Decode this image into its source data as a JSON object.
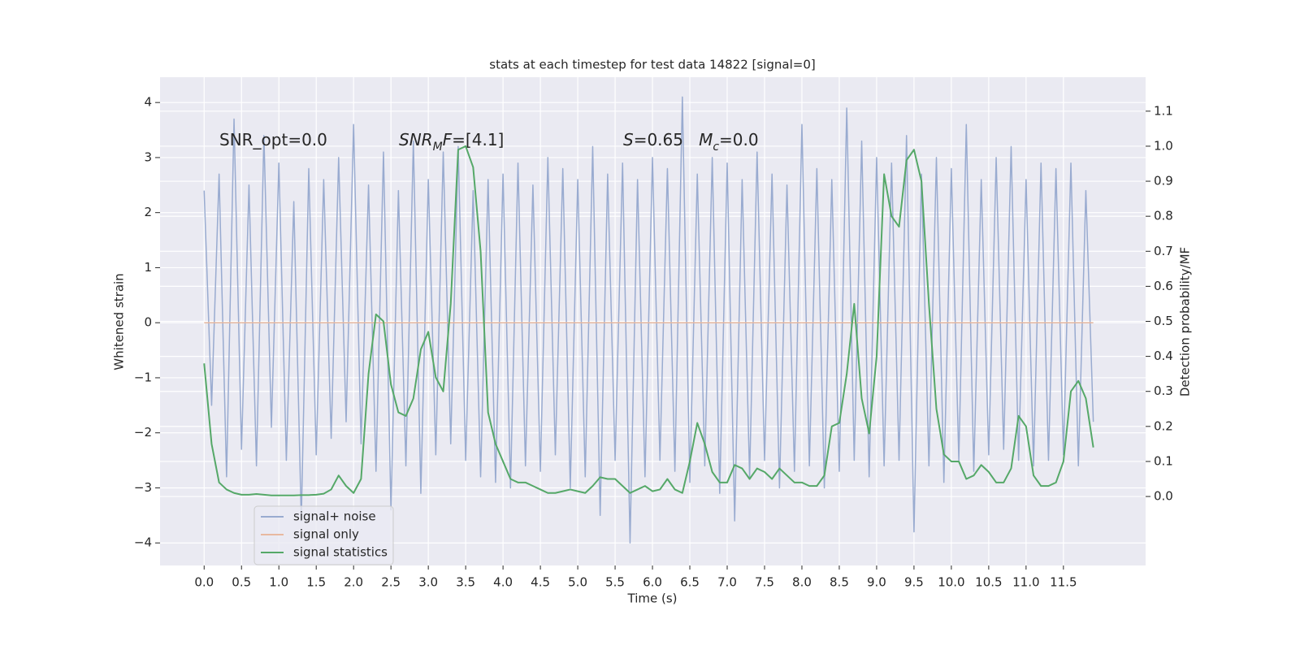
{
  "chart_data": {
    "type": "line",
    "title": "stats at each timestep for test data 14822 [signal=0]",
    "xlabel": "Time (s)",
    "ylabel": "Whitened strain",
    "y2label": "Detection probability/MF",
    "annotations": [
      [
        {
          "text": "SNR_opt=0.0"
        }
      ],
      [
        {
          "text": "SNR",
          "italic": true
        },
        {
          "text": "M",
          "italic": true,
          "sub": true
        },
        {
          "text": "F",
          "italic": true
        },
        {
          "text": "=[4.1]"
        }
      ],
      [
        {
          "text": "S",
          "italic": true
        },
        {
          "text": "=0.65   "
        },
        {
          "text": "M",
          "italic": true
        },
        {
          "text": "c",
          "italic": true,
          "sub": true
        },
        {
          "text": "=0.0"
        }
      ]
    ],
    "x": [
      0,
      0.1,
      0.2,
      0.3,
      0.4,
      0.5,
      0.6,
      0.7,
      0.8,
      0.9,
      1.0,
      1.1,
      1.2,
      1.3,
      1.4,
      1.5,
      1.6,
      1.7,
      1.8,
      1.9,
      2.0,
      2.1,
      2.2,
      2.3,
      2.4,
      2.5,
      2.6,
      2.7,
      2.8,
      2.9,
      3.0,
      3.1,
      3.2,
      3.3,
      3.4,
      3.5,
      3.6,
      3.7,
      3.8,
      3.9,
      4.0,
      4.1,
      4.2,
      4.3,
      4.4,
      4.5,
      4.6,
      4.7,
      4.8,
      4.9,
      5.0,
      5.1,
      5.2,
      5.3,
      5.4,
      5.5,
      5.6,
      5.7,
      5.8,
      5.9,
      6.0,
      6.1,
      6.2,
      6.3,
      6.4,
      6.5,
      6.6,
      6.7,
      6.8,
      6.9,
      7.0,
      7.1,
      7.2,
      7.3,
      7.4,
      7.5,
      7.6,
      7.7,
      7.8,
      7.9,
      8.0,
      8.1,
      8.2,
      8.3,
      8.4,
      8.5,
      8.6,
      8.7,
      8.8,
      8.9,
      9.0,
      9.1,
      9.2,
      9.3,
      9.4,
      9.5,
      9.6,
      9.7,
      9.8,
      9.9,
      10.0,
      10.1,
      10.2,
      10.3,
      10.4,
      10.5,
      10.6,
      10.7,
      10.8,
      10.9,
      11.0,
      11.1,
      11.2,
      11.3,
      11.4,
      11.5,
      11.6,
      11.7,
      11.8,
      11.9
    ],
    "series": [
      {
        "name": "signal+ noise",
        "color": "#99abd0",
        "axis": "y",
        "values": [
          2.4,
          -1.5,
          2.7,
          -2.8,
          3.7,
          -2.3,
          2.5,
          -2.6,
          3.4,
          -1.9,
          2.9,
          -2.5,
          2.2,
          -3.6,
          2.8,
          -2.4,
          2.6,
          -2.1,
          3.0,
          -1.8,
          3.6,
          -2.2,
          2.5,
          -2.7,
          3.1,
          -3.4,
          2.4,
          -2.6,
          3.3,
          -3.1,
          2.6,
          -2.4,
          3.1,
          -2.2,
          3.2,
          -2.5,
          2.4,
          -2.8,
          2.6,
          -2.9,
          2.7,
          -3.0,
          2.9,
          -2.6,
          2.5,
          -2.7,
          3.0,
          -2.4,
          2.8,
          -3.0,
          2.6,
          -2.8,
          3.2,
          -3.5,
          2.7,
          -2.5,
          2.9,
          -4.0,
          2.6,
          -2.8,
          3.0,
          -2.5,
          2.8,
          -2.7,
          4.1,
          -2.9,
          2.7,
          -2.6,
          3.0,
          -3.1,
          2.9,
          -3.6,
          2.6,
          -2.8,
          3.1,
          -2.5,
          2.7,
          -3.0,
          2.5,
          -2.7,
          3.6,
          -2.6,
          2.8,
          -3.0,
          2.6,
          -2.7,
          3.9,
          -2.5,
          3.3,
          -2.8,
          3.0,
          -2.6,
          2.9,
          -2.5,
          3.4,
          -3.8,
          2.7,
          -2.6,
          3.0,
          -2.9,
          2.8,
          -2.5,
          3.6,
          -2.7,
          2.6,
          -2.4,
          3.0,
          -2.3,
          3.2,
          -2.5,
          2.6,
          -2.6,
          2.9,
          -2.5,
          2.8,
          -2.4,
          2.9,
          -2.6,
          2.4,
          -1.8
        ]
      },
      {
        "name": "signal only",
        "color": "#e8b9a0",
        "axis": "y",
        "values": [
          0,
          0,
          0,
          0,
          0,
          0,
          0,
          0,
          0,
          0,
          0,
          0,
          0,
          0,
          0,
          0,
          0,
          0,
          0,
          0,
          0,
          0,
          0,
          0,
          0,
          0,
          0,
          0,
          0,
          0,
          0,
          0,
          0,
          0,
          0,
          0,
          0,
          0,
          0,
          0,
          0,
          0,
          0,
          0,
          0,
          0,
          0,
          0,
          0,
          0,
          0,
          0,
          0,
          0,
          0,
          0,
          0,
          0,
          0,
          0,
          0,
          0,
          0,
          0,
          0,
          0,
          0,
          0,
          0,
          0,
          0,
          0,
          0,
          0,
          0,
          0,
          0,
          0,
          0,
          0,
          0,
          0,
          0,
          0,
          0,
          0,
          0,
          0,
          0,
          0,
          0,
          0,
          0,
          0,
          0,
          0,
          0,
          0,
          0,
          0,
          0,
          0,
          0,
          0,
          0,
          0,
          0,
          0,
          0,
          0,
          0,
          0,
          0,
          0,
          0,
          0,
          0,
          0,
          0,
          0
        ]
      },
      {
        "name": "signal statistics",
        "color": "#55a868",
        "axis": "y2",
        "values": [
          0.38,
          0.15,
          0.04,
          0.02,
          0.01,
          0.005,
          0.005,
          0.007,
          0.005,
          0.003,
          0.003,
          0.003,
          0.003,
          0.004,
          0.004,
          0.005,
          0.008,
          0.02,
          0.06,
          0.03,
          0.01,
          0.05,
          0.35,
          0.52,
          0.5,
          0.32,
          0.24,
          0.23,
          0.28,
          0.42,
          0.47,
          0.34,
          0.3,
          0.55,
          0.99,
          1.0,
          0.94,
          0.7,
          0.24,
          0.15,
          0.1,
          0.05,
          0.04,
          0.04,
          0.03,
          0.02,
          0.01,
          0.01,
          0.015,
          0.02,
          0.015,
          0.01,
          0.03,
          0.055,
          0.05,
          0.05,
          0.03,
          0.01,
          0.02,
          0.03,
          0.015,
          0.02,
          0.05,
          0.02,
          0.01,
          0.1,
          0.21,
          0.15,
          0.07,
          0.04,
          0.04,
          0.09,
          0.08,
          0.05,
          0.08,
          0.07,
          0.05,
          0.08,
          0.06,
          0.04,
          0.04,
          0.03,
          0.03,
          0.06,
          0.2,
          0.21,
          0.35,
          0.55,
          0.28,
          0.18,
          0.4,
          0.92,
          0.8,
          0.77,
          0.96,
          0.99,
          0.9,
          0.55,
          0.25,
          0.12,
          0.1,
          0.1,
          0.05,
          0.06,
          0.09,
          0.07,
          0.04,
          0.04,
          0.08,
          0.23,
          0.2,
          0.06,
          0.03,
          0.03,
          0.04,
          0.1,
          0.3,
          0.33,
          0.28,
          0.14
        ]
      }
    ],
    "xlim": [
      -0.59,
      12.6
    ],
    "xticks": [
      {
        "value": 0,
        "label": "0.0"
      },
      0.5,
      {
        "value": 1,
        "label": "1.0"
      },
      1.5,
      {
        "value": 2,
        "label": "2.0"
      },
      2.5,
      {
        "value": 3,
        "label": "3.0"
      },
      3.5,
      {
        "value": 4,
        "label": "4.0"
      },
      4.5,
      {
        "value": 5,
        "label": "5.0"
      },
      5.5,
      {
        "value": 6,
        "label": "6.0"
      },
      6.5,
      {
        "value": 7,
        "label": "7.0"
      },
      7.5,
      {
        "value": 8,
        "label": "8.0"
      },
      8.5,
      {
        "value": 9,
        "label": "9.0"
      },
      9.5,
      {
        "value": 10,
        "label": "10.0"
      },
      10.5,
      {
        "value": 11,
        "label": "11.0"
      },
      11.5
    ],
    "ylim": [
      -4.41,
      4.46
    ],
    "yticks": [
      {
        "value": -4,
        "label": "−4"
      },
      {
        "value": -3,
        "label": "−3"
      },
      {
        "value": -2,
        "label": "−2"
      },
      {
        "value": -1,
        "label": "−1"
      },
      0,
      1,
      2,
      3,
      4
    ],
    "y2lim": [
      -0.197,
      1.197
    ],
    "y2ticks": [
      {
        "value": 0,
        "label": "0.0"
      },
      0.1,
      0.2,
      0.3,
      0.4,
      0.5,
      0.6,
      0.7,
      0.8,
      0.9,
      {
        "value": 1,
        "label": "1.0"
      },
      1.1
    ],
    "grid": true,
    "legend": "lower left"
  }
}
